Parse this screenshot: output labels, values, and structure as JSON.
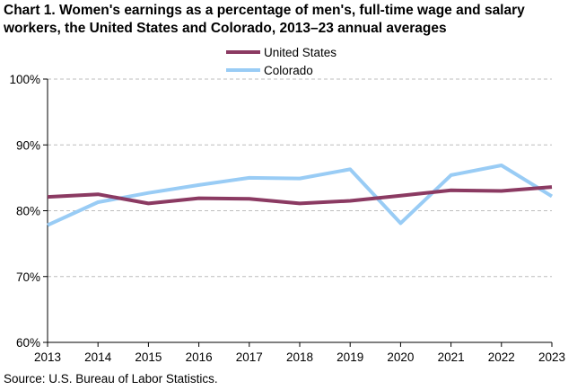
{
  "chart_data": {
    "type": "line",
    "title": "Chart 1. Women's earnings as a percentage of men's, full-time wage and salary workers, the United States and Colorado, 2013–23 annual averages",
    "xlabel": "",
    "ylabel": "",
    "x": [
      "2013",
      "2014",
      "2015",
      "2016",
      "2017",
      "2018",
      "2019",
      "2020",
      "2021",
      "2022",
      "2023"
    ],
    "y_ticks": [
      "60%",
      "70%",
      "80%",
      "90%",
      "100%"
    ],
    "ylim": [
      60,
      100
    ],
    "grid": "horizontal dashed",
    "legend_position": "top-center",
    "series": [
      {
        "name": "United States",
        "color": "#8b3a62",
        "values": [
          82.1,
          82.5,
          81.1,
          81.9,
          81.8,
          81.1,
          81.5,
          82.3,
          83.1,
          83.0,
          83.6
        ]
      },
      {
        "name": "Colorado",
        "color": "#99ccf5",
        "values": [
          77.8,
          81.3,
          82.7,
          83.9,
          85.0,
          84.9,
          86.3,
          78.1,
          85.4,
          86.9,
          82.2
        ]
      }
    ]
  },
  "source": "Source:  U.S. Bureau of Labor Statistics."
}
